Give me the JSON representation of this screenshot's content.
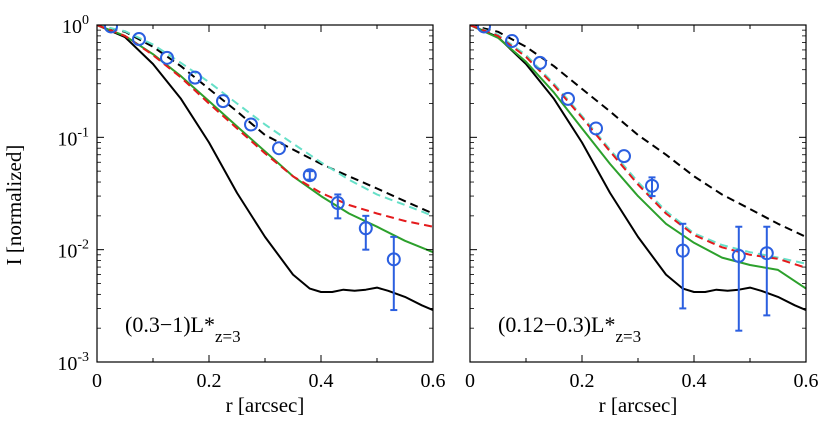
{
  "ylabel": "I [normalized]",
  "y_ticks": [
    {
      "base": "10",
      "exp": "0",
      "value": 1
    },
    {
      "base": "10",
      "exp": "-1",
      "value": 0.1
    },
    {
      "base": "10",
      "exp": "-2",
      "value": 0.01
    },
    {
      "base": "10",
      "exp": "-3",
      "value": 0.001
    }
  ],
  "colors": {
    "black": "#000000",
    "green": "#2ca02c",
    "red": "#e41a1c",
    "cyan": "#66e0c8",
    "blue": "#2b5fe0"
  },
  "chart_data": [
    {
      "type": "line",
      "panel": "left",
      "label_main": "(0.3−1)L*",
      "label_sub": "z=3",
      "xlabel": "r [arcsec]",
      "ylabel": "I [normalized]",
      "yscale": "log",
      "xlim": [
        0,
        0.6
      ],
      "ylim": [
        0.001,
        1
      ],
      "x_ticks": [
        "0",
        "0.2",
        "0.4",
        "0.6"
      ],
      "series": [
        {
          "name": "black-solid",
          "color": "#000000",
          "style": "solid",
          "x": [
            0,
            0.05,
            0.1,
            0.15,
            0.2,
            0.25,
            0.3,
            0.35,
            0.38,
            0.4,
            0.42,
            0.44,
            0.46,
            0.48,
            0.5,
            0.52,
            0.55,
            0.58,
            0.6
          ],
          "y": [
            1.0,
            0.78,
            0.45,
            0.22,
            0.09,
            0.032,
            0.013,
            0.006,
            0.0045,
            0.0042,
            0.0042,
            0.0044,
            0.0043,
            0.0044,
            0.0046,
            0.0043,
            0.0038,
            0.0032,
            0.0029
          ]
        },
        {
          "name": "black-dashed",
          "color": "#000000",
          "style": "dashed",
          "x": [
            0,
            0.05,
            0.1,
            0.15,
            0.2,
            0.25,
            0.3,
            0.35,
            0.4,
            0.45,
            0.5,
            0.55,
            0.6
          ],
          "y": [
            1.0,
            0.87,
            0.64,
            0.43,
            0.27,
            0.17,
            0.105,
            0.078,
            0.058,
            0.045,
            0.035,
            0.027,
            0.021
          ]
        },
        {
          "name": "cyan-dashed",
          "color": "#66e0c8",
          "style": "dashed",
          "x": [
            0,
            0.05,
            0.1,
            0.15,
            0.2,
            0.25,
            0.3,
            0.35,
            0.4,
            0.45,
            0.5,
            0.55,
            0.6
          ],
          "y": [
            1.0,
            0.88,
            0.67,
            0.46,
            0.31,
            0.2,
            0.13,
            0.088,
            0.06,
            0.042,
            0.031,
            0.025,
            0.02
          ]
        },
        {
          "name": "green-solid",
          "color": "#2ca02c",
          "style": "solid",
          "x": [
            0,
            0.05,
            0.1,
            0.15,
            0.2,
            0.25,
            0.3,
            0.35,
            0.4,
            0.45,
            0.5,
            0.55,
            0.6
          ],
          "y": [
            1.0,
            0.8,
            0.55,
            0.35,
            0.21,
            0.125,
            0.075,
            0.045,
            0.03,
            0.021,
            0.016,
            0.012,
            0.0095
          ]
        },
        {
          "name": "red-dashed",
          "color": "#e41a1c",
          "style": "dashed",
          "x": [
            0,
            0.05,
            0.1,
            0.15,
            0.2,
            0.25,
            0.3,
            0.35,
            0.4,
            0.45,
            0.5,
            0.55,
            0.6
          ],
          "y": [
            1.0,
            0.8,
            0.54,
            0.34,
            0.2,
            0.12,
            0.072,
            0.045,
            0.032,
            0.025,
            0.021,
            0.018,
            0.016
          ]
        }
      ],
      "points": {
        "name": "data-points",
        "color": "#2b5fe0",
        "x": [
          0.025,
          0.075,
          0.125,
          0.175,
          0.225,
          0.275,
          0.325,
          0.38,
          0.43,
          0.48,
          0.53
        ],
        "y": [
          0.97,
          0.75,
          0.51,
          0.34,
          0.21,
          0.13,
          0.08,
          0.046,
          0.026,
          0.0155,
          0.0082
        ],
        "y_low": [
          0.97,
          0.75,
          0.51,
          0.34,
          0.21,
          0.13,
          0.08,
          0.042,
          0.019,
          0.01,
          0.0029
        ],
        "y_high": [
          0.97,
          0.75,
          0.51,
          0.34,
          0.21,
          0.13,
          0.08,
          0.05,
          0.031,
          0.02,
          0.013
        ]
      }
    },
    {
      "type": "line",
      "panel": "right",
      "label_main": "(0.12−0.3)L*",
      "label_sub": "z=3",
      "xlabel": "r [arcsec]",
      "ylabel": "I [normalized]",
      "yscale": "log",
      "xlim": [
        0,
        0.6
      ],
      "ylim": [
        0.001,
        1
      ],
      "x_ticks": [
        "0",
        "0.2",
        "0.4",
        "0.6"
      ],
      "series": [
        {
          "name": "black-solid",
          "color": "#000000",
          "style": "solid",
          "x": [
            0,
            0.05,
            0.1,
            0.15,
            0.2,
            0.25,
            0.3,
            0.35,
            0.38,
            0.4,
            0.42,
            0.44,
            0.46,
            0.48,
            0.5,
            0.52,
            0.55,
            0.58,
            0.6
          ],
          "y": [
            1.0,
            0.78,
            0.45,
            0.22,
            0.09,
            0.032,
            0.013,
            0.006,
            0.0045,
            0.0042,
            0.0042,
            0.0044,
            0.0043,
            0.0044,
            0.0046,
            0.0043,
            0.0038,
            0.0032,
            0.0029
          ]
        },
        {
          "name": "black-dashed",
          "color": "#000000",
          "style": "dashed",
          "x": [
            0,
            0.05,
            0.1,
            0.15,
            0.2,
            0.25,
            0.3,
            0.35,
            0.4,
            0.45,
            0.5,
            0.55,
            0.6
          ],
          "y": [
            1.0,
            0.87,
            0.64,
            0.43,
            0.27,
            0.17,
            0.105,
            0.07,
            0.045,
            0.031,
            0.023,
            0.017,
            0.013
          ]
        },
        {
          "name": "cyan-dashed",
          "color": "#66e0c8",
          "style": "dashed",
          "x": [
            0,
            0.05,
            0.1,
            0.15,
            0.2,
            0.25,
            0.3,
            0.35,
            0.4,
            0.45,
            0.5,
            0.55,
            0.6
          ],
          "y": [
            1.0,
            0.82,
            0.54,
            0.3,
            0.155,
            0.078,
            0.04,
            0.022,
            0.014,
            0.011,
            0.0095,
            0.0085,
            0.0075
          ]
        },
        {
          "name": "green-solid",
          "color": "#2ca02c",
          "style": "solid",
          "x": [
            0,
            0.05,
            0.1,
            0.15,
            0.2,
            0.25,
            0.3,
            0.35,
            0.4,
            0.45,
            0.5,
            0.55,
            0.6
          ],
          "y": [
            1.0,
            0.77,
            0.47,
            0.25,
            0.12,
            0.058,
            0.03,
            0.017,
            0.0115,
            0.0085,
            0.0073,
            0.0066,
            0.0045
          ]
        },
        {
          "name": "red-dashed",
          "color": "#e41a1c",
          "style": "dashed",
          "x": [
            0,
            0.05,
            0.1,
            0.15,
            0.2,
            0.25,
            0.3,
            0.35,
            0.4,
            0.45,
            0.5,
            0.55,
            0.6
          ],
          "y": [
            1.0,
            0.8,
            0.52,
            0.29,
            0.15,
            0.075,
            0.038,
            0.021,
            0.0135,
            0.0105,
            0.009,
            0.0083,
            0.0069
          ]
        }
      ],
      "points": {
        "name": "data-points",
        "color": "#2b5fe0",
        "x": [
          0.025,
          0.075,
          0.125,
          0.175,
          0.225,
          0.275,
          0.325,
          0.38,
          0.48,
          0.53
        ],
        "y": [
          0.97,
          0.72,
          0.46,
          0.22,
          0.12,
          0.068,
          0.037,
          0.0098,
          0.0088,
          0.0093
        ],
        "y_low": [
          0.97,
          0.72,
          0.46,
          0.22,
          0.12,
          0.068,
          0.03,
          0.003,
          0.0019,
          0.0026
        ],
        "y_high": [
          0.97,
          0.72,
          0.46,
          0.22,
          0.12,
          0.068,
          0.044,
          0.017,
          0.016,
          0.016
        ]
      }
    }
  ]
}
